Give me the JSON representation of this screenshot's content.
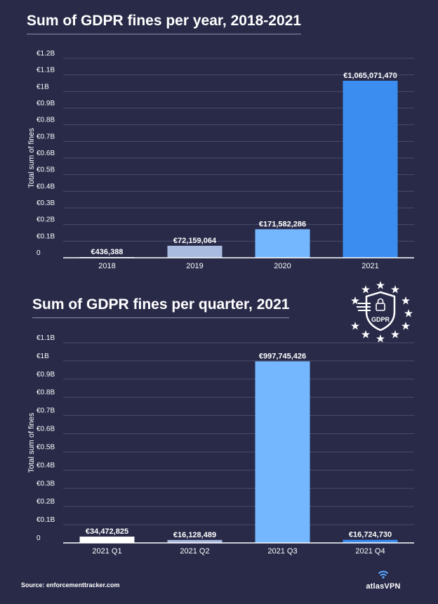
{
  "chart_data": [
    {
      "type": "bar",
      "title": "Sum of GDPR fines per year, 2018-2021",
      "ylabel": "Total sum of fines",
      "categories": [
        "2018",
        "2019",
        "2020",
        "2021"
      ],
      "values": [
        436388,
        72159064,
        171582286,
        1065071470
      ],
      "data_labels": [
        "€436,388",
        "€72,159,064",
        "€171,582,286",
        "€1,065,071,470"
      ],
      "bar_colors": [
        "#ffffff",
        "#a9bce0",
        "#75b7ff",
        "#3b8ef0"
      ],
      "ylim": [
        0,
        1200000000
      ],
      "yticks": [
        0,
        100000000,
        200000000,
        300000000,
        400000000,
        500000000,
        600000000,
        700000000,
        800000000,
        900000000,
        1000000000,
        1100000000,
        1200000000
      ],
      "ytick_labels": [
        "0",
        "€0.1B",
        "€0.2B",
        "€0.3B",
        "€0.4B",
        "€0.5B",
        "€0.6B",
        "€0.7B",
        "€0.8B",
        "€0.9B",
        "€1B",
        "€1.1B",
        "€1.2B"
      ],
      "grid": true
    },
    {
      "type": "bar",
      "title": "Sum of GDPR fines per quarter, 2021",
      "ylabel": "Total sum of fines",
      "categories": [
        "2021 Q1",
        "2021 Q2",
        "2021 Q3",
        "2021 Q4"
      ],
      "values": [
        34472825,
        16128489,
        997745426,
        16724730
      ],
      "data_labels": [
        "€34,472,825",
        "€16,128,489",
        "€997,745,426",
        "€16,724,730"
      ],
      "bar_colors": [
        "#ffffff",
        "#a9bce0",
        "#75b7ff",
        "#3b8ef0"
      ],
      "ylim": [
        0,
        1100000000
      ],
      "yticks": [
        0,
        100000000,
        200000000,
        300000000,
        400000000,
        500000000,
        600000000,
        700000000,
        800000000,
        900000000,
        1000000000,
        1100000000
      ],
      "ytick_labels": [
        "0",
        "€0.1B",
        "€0.2B",
        "€0.3B",
        "€0.4B",
        "€0.5B",
        "€0.6B",
        "€0.7B",
        "€0.8B",
        "€0.9B",
        "€1B",
        "€1.1B"
      ],
      "grid": true
    }
  ],
  "source": "Source: enforcementtracker.com",
  "brand": {
    "name": "atlasVPN",
    "icon": "wifi-icon"
  },
  "gdpr_logo": {
    "label": "GDPR",
    "icon": "gdpr-shield-icon"
  },
  "colors": {
    "background": "#282a48",
    "grid": "#4a4c6c",
    "axis": "#ffffff"
  }
}
